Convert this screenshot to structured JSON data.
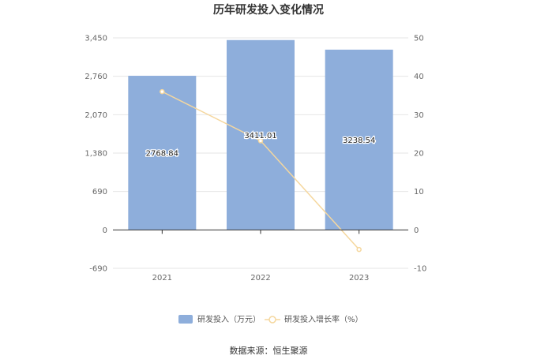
{
  "title": "历年研发投入变化情况",
  "source": "数据来源：恒生聚源",
  "chart_data": {
    "type": "bar",
    "categories": [
      "2021",
      "2022",
      "2023"
    ],
    "series": [
      {
        "name": "研发投入（万元）",
        "type": "bar",
        "axis": "left",
        "values": [
          2768.84,
          3411.01,
          3238.54
        ],
        "labels": [
          "2768.84",
          "3411.01",
          "3238.54"
        ],
        "color": "#8eaedb"
      },
      {
        "name": "研发投入增长率（%）",
        "type": "line",
        "axis": "right",
        "values": [
          36,
          23.2,
          -5.1
        ],
        "color": "#f5d79e"
      }
    ],
    "y_left": {
      "min": -690,
      "max": 3450,
      "ticks": [
        "3,450",
        "2,760",
        "2,070",
        "1,380",
        "690",
        "0",
        "-690"
      ]
    },
    "y_right": {
      "min": -10,
      "max": 50,
      "ticks": [
        "50",
        "40",
        "30",
        "20",
        "10",
        "0",
        "-10"
      ]
    },
    "grid": true,
    "legend_position": "bottom"
  }
}
